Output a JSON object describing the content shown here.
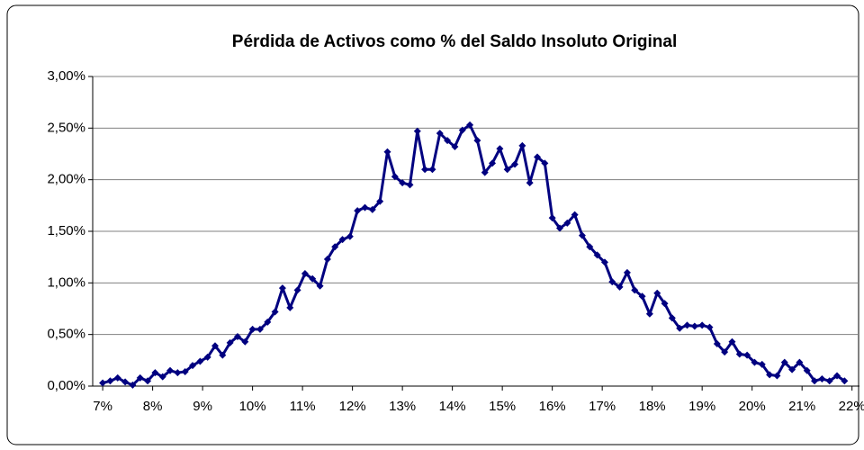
{
  "chart_data": {
    "type": "line",
    "title": "Pérdida de Activos como % del Saldo Insoluto Original",
    "x": [
      7,
      7.15,
      7.3,
      7.45,
      7.6,
      7.75,
      7.9,
      8.05,
      8.2,
      8.35,
      8.5,
      8.65,
      8.8,
      8.95,
      9.1,
      9.25,
      9.4,
      9.55,
      9.7,
      9.85,
      10,
      10.15,
      10.3,
      10.45,
      10.6,
      10.75,
      10.9,
      11.05,
      11.2,
      11.35,
      11.5,
      11.65,
      11.8,
      11.95,
      12.1,
      12.25,
      12.4,
      12.55,
      12.7,
      12.85,
      13,
      13.15,
      13.3,
      13.45,
      13.6,
      13.75,
      13.9,
      14.05,
      14.2,
      14.35,
      14.5,
      14.65,
      14.8,
      14.95,
      15.1,
      15.25,
      15.4,
      15.55,
      15.7,
      15.85,
      16,
      16.15,
      16.3,
      16.45,
      16.6,
      16.75,
      16.9,
      17.05,
      17.2,
      17.35,
      17.5,
      17.65,
      17.8,
      17.95,
      18.1,
      18.25,
      18.4,
      18.55,
      18.7,
      18.85,
      19,
      19.15,
      19.3,
      19.45,
      19.6,
      19.75,
      19.9,
      20.05,
      20.2,
      20.35,
      20.5,
      20.65,
      20.8,
      20.95,
      21.1,
      21.25,
      21.4,
      21.55,
      21.7,
      21.85
    ],
    "series": [
      {
        "color": "#000080",
        "values": [
          0.03,
          0.05,
          0.08,
          0.04,
          0.01,
          0.08,
          0.05,
          0.13,
          0.09,
          0.15,
          0.13,
          0.14,
          0.2,
          0.24,
          0.28,
          0.39,
          0.3,
          0.42,
          0.48,
          0.43,
          0.55,
          0.55,
          0.62,
          0.72,
          0.95,
          0.76,
          0.93,
          1.09,
          1.04,
          0.97,
          1.23,
          1.35,
          1.42,
          1.45,
          1.7,
          1.73,
          1.71,
          1.79,
          2.27,
          2.03,
          1.97,
          1.95,
          2.47,
          2.1,
          2.1,
          2.45,
          2.38,
          2.32,
          2.48,
          2.53,
          2.38,
          2.07,
          2.16,
          2.3,
          2.1,
          2.15,
          2.33,
          1.97,
          2.22,
          2.16,
          1.63,
          1.53,
          1.58,
          1.66,
          1.46,
          1.35,
          1.27,
          1.2,
          1.01,
          0.96,
          1.1,
          0.93,
          0.87,
          0.7,
          0.9,
          0.8,
          0.66,
          0.56,
          0.59,
          0.58,
          0.59,
          0.57,
          0.41,
          0.33,
          0.43,
          0.31,
          0.3,
          0.23,
          0.21,
          0.11,
          0.1,
          0.23,
          0.16,
          0.23,
          0.15,
          0.05,
          0.07,
          0.05,
          0.1,
          0.05
        ]
      }
    ],
    "xlim": [
      6.8,
      22.15
    ],
    "xticks": [
      {
        "value": 7,
        "label": "7%"
      },
      {
        "value": 8,
        "label": "8%"
      },
      {
        "value": 9,
        "label": "9%"
      },
      {
        "value": 10,
        "label": "10%"
      },
      {
        "value": 11,
        "label": "11%"
      },
      {
        "value": 12,
        "label": "12%"
      },
      {
        "value": 13,
        "label": "13%"
      },
      {
        "value": 14,
        "label": "14%"
      },
      {
        "value": 15,
        "label": "15%"
      },
      {
        "value": 16,
        "label": "16%"
      },
      {
        "value": 17,
        "label": "17%"
      },
      {
        "value": 18,
        "label": "18%"
      },
      {
        "value": 19,
        "label": "19%"
      },
      {
        "value": 20,
        "label": "20%"
      },
      {
        "value": 21,
        "label": "21%"
      },
      {
        "value": 22,
        "label": "22%"
      }
    ],
    "ylim": [
      0,
      3
    ],
    "yticks": [
      {
        "value": 0,
        "label": "0,00%"
      },
      {
        "value": 0.5,
        "label": "0,50%"
      },
      {
        "value": 1,
        "label": "1,00%"
      },
      {
        "value": 1.5,
        "label": "1,50%"
      },
      {
        "value": 2,
        "label": "2,00%"
      },
      {
        "value": 2.5,
        "label": "2,50%"
      },
      {
        "value": 3,
        "label": "3,00%"
      }
    ],
    "grid": true
  }
}
